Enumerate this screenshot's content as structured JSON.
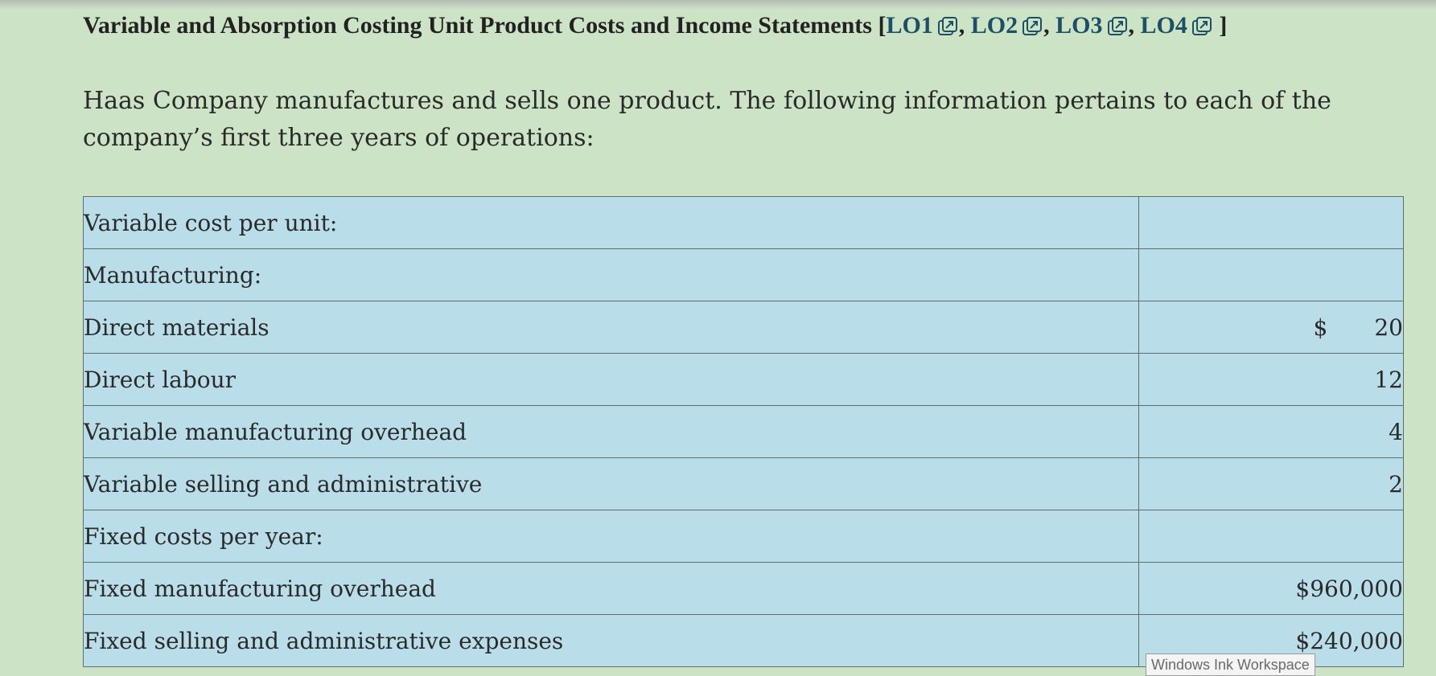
{
  "heading": {
    "title": "Variable and Absorption Costing Unit Product Costs and Income Statements",
    "open_bracket": "[",
    "close_bracket": "]",
    "links": [
      "LO1",
      "LO2",
      "LO3",
      "LO4"
    ],
    "separator": ", "
  },
  "intro": "Haas Company manufactures and sells one product. The following information pertains to each of the company’s first three years of operations:",
  "table": {
    "rows": [
      {
        "label": "Variable cost per unit:",
        "currency": "",
        "value": ""
      },
      {
        "label": "Manufacturing:",
        "currency": "",
        "value": ""
      },
      {
        "label": "Direct materials",
        "currency": "$",
        "value": "20"
      },
      {
        "label": "Direct labour",
        "currency": "",
        "value": "12"
      },
      {
        "label": "Variable manufacturing overhead",
        "currency": "",
        "value": "4"
      },
      {
        "label": "Variable selling and administrative",
        "currency": "",
        "value": "2"
      },
      {
        "label": "Fixed costs per year:",
        "currency": "",
        "value": ""
      },
      {
        "label": "Fixed manufacturing overhead",
        "currency": "",
        "value": "$960,000"
      },
      {
        "label": "Fixed selling and administrative expenses",
        "currency": "",
        "value": "$240,000"
      }
    ]
  },
  "tooltip": "Windows Ink Workspace",
  "colors": {
    "page_background": "#cce3c6",
    "table_background": "#badee9",
    "link_color": "#1d4f66"
  },
  "icons": {
    "lo_link": "external-link-icon"
  }
}
